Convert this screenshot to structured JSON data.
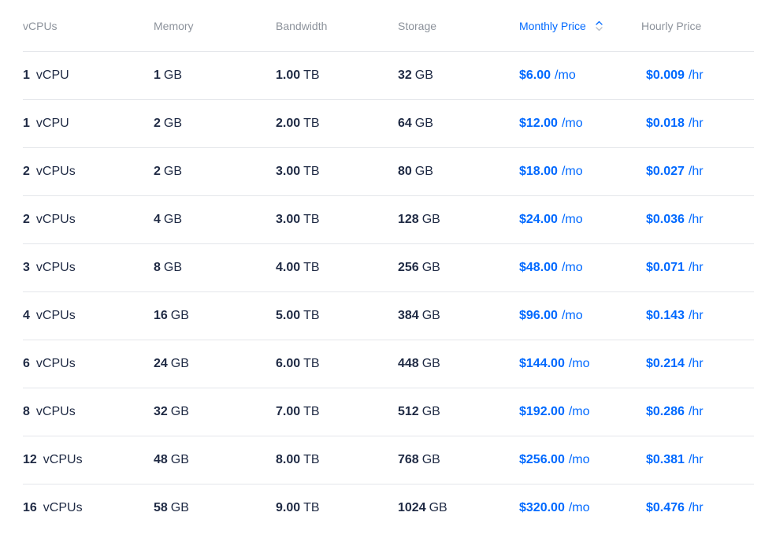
{
  "headers": {
    "vcpus": "vCPUs",
    "memory": "Memory",
    "bandwidth": "Bandwidth",
    "storage": "Storage",
    "monthly_price": "Monthly Price",
    "hourly_price": "Hourly Price"
  },
  "sort": {
    "column": "monthly_price",
    "icon": "sort-toggle-icon",
    "active_color": "#0069ff"
  },
  "rows": [
    {
      "vcpu_count": "1",
      "vcpu_unit": "vCPU",
      "memory": "1",
      "memory_unit": "GB",
      "bandwidth": "1.00",
      "bandwidth_unit": "TB",
      "storage": "32",
      "storage_unit": "GB",
      "monthly": "$6.00",
      "monthly_unit": "/mo",
      "hourly": "$0.009",
      "hourly_unit": "/hr"
    },
    {
      "vcpu_count": "1",
      "vcpu_unit": "vCPU",
      "memory": "2",
      "memory_unit": "GB",
      "bandwidth": "2.00",
      "bandwidth_unit": "TB",
      "storage": "64",
      "storage_unit": "GB",
      "monthly": "$12.00",
      "monthly_unit": "/mo",
      "hourly": "$0.018",
      "hourly_unit": "/hr"
    },
    {
      "vcpu_count": "2",
      "vcpu_unit": "vCPUs",
      "memory": "2",
      "memory_unit": "GB",
      "bandwidth": "3.00",
      "bandwidth_unit": "TB",
      "storage": "80",
      "storage_unit": "GB",
      "monthly": "$18.00",
      "monthly_unit": "/mo",
      "hourly": "$0.027",
      "hourly_unit": "/hr"
    },
    {
      "vcpu_count": "2",
      "vcpu_unit": "vCPUs",
      "memory": "4",
      "memory_unit": "GB",
      "bandwidth": "3.00",
      "bandwidth_unit": "TB",
      "storage": "128",
      "storage_unit": "GB",
      "monthly": "$24.00",
      "monthly_unit": "/mo",
      "hourly": "$0.036",
      "hourly_unit": "/hr"
    },
    {
      "vcpu_count": "3",
      "vcpu_unit": "vCPUs",
      "memory": "8",
      "memory_unit": "GB",
      "bandwidth": "4.00",
      "bandwidth_unit": "TB",
      "storage": "256",
      "storage_unit": "GB",
      "monthly": "$48.00",
      "monthly_unit": "/mo",
      "hourly": "$0.071",
      "hourly_unit": "/hr"
    },
    {
      "vcpu_count": "4",
      "vcpu_unit": "vCPUs",
      "memory": "16",
      "memory_unit": "GB",
      "bandwidth": "5.00",
      "bandwidth_unit": "TB",
      "storage": "384",
      "storage_unit": "GB",
      "monthly": "$96.00",
      "monthly_unit": "/mo",
      "hourly": "$0.143",
      "hourly_unit": "/hr"
    },
    {
      "vcpu_count": "6",
      "vcpu_unit": "vCPUs",
      "memory": "24",
      "memory_unit": "GB",
      "bandwidth": "6.00",
      "bandwidth_unit": "TB",
      "storage": "448",
      "storage_unit": "GB",
      "monthly": "$144.00",
      "monthly_unit": "/mo",
      "hourly": "$0.214",
      "hourly_unit": "/hr"
    },
    {
      "vcpu_count": "8",
      "vcpu_unit": "vCPUs",
      "memory": "32",
      "memory_unit": "GB",
      "bandwidth": "7.00",
      "bandwidth_unit": "TB",
      "storage": "512",
      "storage_unit": "GB",
      "monthly": "$192.00",
      "monthly_unit": "/mo",
      "hourly": "$0.286",
      "hourly_unit": "/hr"
    },
    {
      "vcpu_count": "12",
      "vcpu_unit": "vCPUs",
      "memory": "48",
      "memory_unit": "GB",
      "bandwidth": "8.00",
      "bandwidth_unit": "TB",
      "storage": "768",
      "storage_unit": "GB",
      "monthly": "$256.00",
      "monthly_unit": "/mo",
      "hourly": "$0.381",
      "hourly_unit": "/hr"
    },
    {
      "vcpu_count": "16",
      "vcpu_unit": "vCPUs",
      "memory": "58",
      "memory_unit": "GB",
      "bandwidth": "9.00",
      "bandwidth_unit": "TB",
      "storage": "1024",
      "storage_unit": "GB",
      "monthly": "$320.00",
      "monthly_unit": "/mo",
      "hourly": "$0.476",
      "hourly_unit": "/hr"
    }
  ]
}
